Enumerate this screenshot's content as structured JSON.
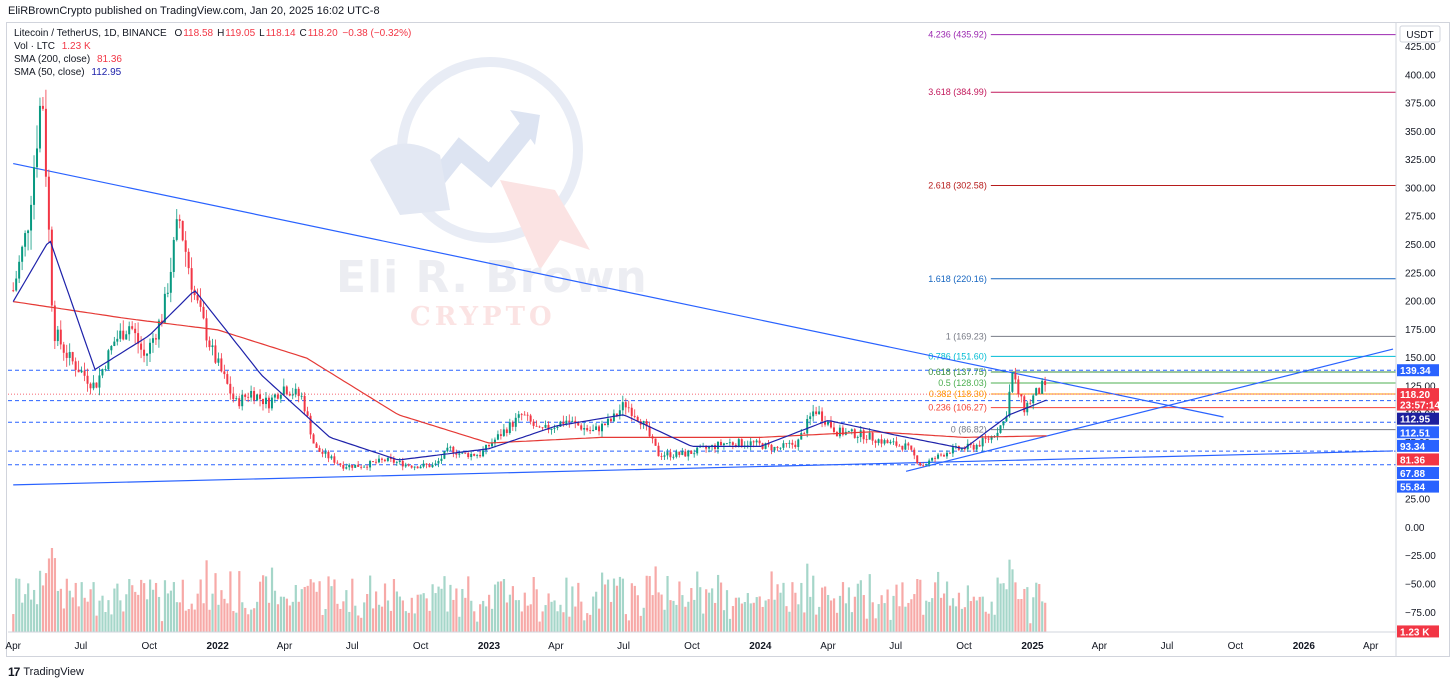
{
  "header": {
    "publisher": "EliRBrownCrypto published on TradingView.com, Jan 20, 2025 16:02 UTC-8"
  },
  "legend": {
    "symbol": "Litecoin / TetherUS, 1D, BINANCE",
    "ohlc": [
      {
        "k": "O",
        "v": "118.58"
      },
      {
        "k": "H",
        "v": "119.05"
      },
      {
        "k": "L",
        "v": "118.14"
      },
      {
        "k": "C",
        "v": "118.20"
      }
    ],
    "change": "−0.38 (−0.32%)",
    "vol_label": "Vol · LTC",
    "vol_value": "1.23 K",
    "sma200_label": "SMA (200, close)",
    "sma200_value": "81.36",
    "sma50_label": "SMA (50, close)",
    "sma50_value": "112.95"
  },
  "watermark": {
    "line1": "Eli R. Brown",
    "line2": "CRYPTO"
  },
  "footer": {
    "brand": "TradingView"
  },
  "chart_data": {
    "type": "candlestick",
    "symbol": "LTCUSDT",
    "interval": "1D",
    "currency": "USDT",
    "x_tick_labels": [
      "Apr",
      "Jul",
      "Oct",
      "2022",
      "Apr",
      "Jul",
      "Oct",
      "2023",
      "Apr",
      "Jul",
      "Oct",
      "2024",
      "Apr",
      "Jul",
      "Oct",
      "2025",
      "Apr",
      "Jul",
      "Oct",
      "2026",
      "Apr"
    ],
    "y_tick_labels": [
      "425.00",
      "400.00",
      "375.00",
      "350.00",
      "325.00",
      "300.00",
      "275.00",
      "250.00",
      "225.00",
      "200.00",
      "175.00",
      "150.00",
      "125.00",
      "100.00",
      "75.00",
      "50.00",
      "25.00",
      "0.00",
      "−25.00",
      "−50.00",
      "−75.00"
    ],
    "ylim": [
      -92,
      440
    ],
    "approx_price_series": {
      "dates": [
        "2021-04-01",
        "2021-04-20",
        "2021-05-10",
        "2021-05-25",
        "2021-06-15",
        "2021-07-20",
        "2021-08-15",
        "2021-09-05",
        "2021-09-25",
        "2021-10-20",
        "2021-11-10",
        "2021-12-01",
        "2021-12-25",
        "2022-01-25",
        "2022-02-15",
        "2022-03-10",
        "2022-03-30",
        "2022-04-25",
        "2022-05-12",
        "2022-06-18",
        "2022-07-15",
        "2022-08-15",
        "2022-09-20",
        "2022-10-20",
        "2022-11-09",
        "2022-11-25",
        "2022-12-20",
        "2023-01-20",
        "2023-02-15",
        "2023-03-10",
        "2023-04-15",
        "2023-05-20",
        "2023-06-15",
        "2023-07-03",
        "2023-07-25",
        "2023-08-17",
        "2023-09-20",
        "2023-10-20",
        "2023-11-15",
        "2023-12-20",
        "2024-01-23",
        "2024-02-20",
        "2024-03-14",
        "2024-04-13",
        "2024-05-20",
        "2024-06-20",
        "2024-07-15",
        "2024-08-05",
        "2024-09-10",
        "2024-10-15",
        "2024-11-06",
        "2024-11-25",
        "2024-12-05",
        "2024-12-20",
        "2025-01-05",
        "2025-01-15",
        "2025-01-20"
      ],
      "close": [
        210,
        265,
        390,
        175,
        150,
        125,
        165,
        180,
        150,
        190,
        275,
        205,
        155,
        110,
        120,
        110,
        125,
        115,
        70,
        55,
        55,
        60,
        55,
        55,
        70,
        65,
        65,
        85,
        100,
        85,
        95,
        85,
        95,
        110,
        95,
        65,
        65,
        70,
        75,
        75,
        70,
        75,
        105,
        85,
        82,
        75,
        72,
        55,
        68,
        72,
        80,
        95,
        135,
        105,
        118,
        125,
        118.2
      ]
    },
    "sma_200": {
      "dates": [
        "2021-04-01",
        "2021-09-01",
        "2022-01-01",
        "2022-05-01",
        "2022-09-01",
        "2023-01-01",
        "2023-06-01",
        "2024-01-01",
        "2024-06-01",
        "2024-10-01",
        "2025-01-20"
      ],
      "values": [
        200,
        185,
        175,
        150,
        100,
        75,
        80,
        80,
        85,
        80,
        81.36
      ]
    },
    "sma_50": {
      "dates": [
        "2021-04-01",
        "2021-05-20",
        "2021-07-20",
        "2021-10-01",
        "2021-12-01",
        "2022-03-01",
        "2022-06-01",
        "2022-09-01",
        "2023-01-01",
        "2023-04-01",
        "2023-07-01",
        "2023-10-01",
        "2024-01-01",
        "2024-04-01",
        "2024-07-01",
        "2024-10-01",
        "2024-12-01",
        "2025-01-20"
      ],
      "values": [
        200,
        255,
        140,
        170,
        210,
        135,
        80,
        60,
        70,
        90,
        100,
        72,
        72,
        95,
        82,
        70,
        100,
        112.95
      ]
    },
    "fib_levels": [
      {
        "label": "4.236 (435.92)",
        "value": 435.92,
        "color": "#9c27b0"
      },
      {
        "label": "3.618 (384.99)",
        "value": 384.99,
        "color": "#c2185b"
      },
      {
        "label": "2.618 (302.58)",
        "value": 302.58,
        "color": "#b71c1c"
      },
      {
        "label": "1.618 (220.16)",
        "value": 220.16,
        "color": "#1565c0"
      },
      {
        "label": "1 (169.23)",
        "value": 169.23,
        "color": "#787b86"
      },
      {
        "label": "0.786 (151.60)",
        "value": 151.6,
        "color": "#00bcd4"
      },
      {
        "label": "0.618 (137.75)",
        "value": 137.75,
        "color": "#388e3c"
      },
      {
        "label": "0.5 (128.03)",
        "value": 128.03,
        "color": "#4caf50"
      },
      {
        "label": "0.382 (118.30)",
        "value": 118.3,
        "color": "#ff9800"
      },
      {
        "label": "0.236 (106.27)",
        "value": 106.27,
        "color": "#f44336"
      },
      {
        "label": "0 (86.82)",
        "value": 86.82,
        "color": "#787b86"
      }
    ],
    "horizontal_levels": [
      139.34,
      112.51,
      93.34,
      67.88,
      55.84
    ],
    "price_tags": [
      {
        "label": "139.34",
        "value": 139.34,
        "bg": "#2962ff",
        "color": "#ffffff"
      },
      {
        "label": "118.20",
        "value": 118.2,
        "bg": "#f23645",
        "color": "#ffffff"
      },
      {
        "label": "23:57:14",
        "value": 109.0,
        "bg": "#f23645",
        "color": "#ffffff"
      },
      {
        "label": "112.95",
        "value": 96.5,
        "bg": "#1c1f9e",
        "color": "#ffffff"
      },
      {
        "label": "112.51",
        "value": 84.5,
        "bg": "#2962ff",
        "color": "#ffffff"
      },
      {
        "label": "93.34",
        "value": 72.5,
        "bg": "#2962ff",
        "color": "#ffffff"
      },
      {
        "label": "81.36",
        "value": 60.5,
        "bg": "#f23645",
        "color": "#ffffff"
      },
      {
        "label": "67.88",
        "value": 48.5,
        "bg": "#2962ff",
        "color": "#ffffff"
      },
      {
        "label": "55.84",
        "value": 36.5,
        "bg": "#2962ff",
        "color": "#ffffff"
      },
      {
        "label": "1.23 K",
        "value": -91.5,
        "bg": "#f23645",
        "color": "#ffffff"
      }
    ],
    "trendlines": [
      {
        "name": "descending-resistance",
        "from": [
          "2021-04-01",
          322
        ],
        "to": [
          "2025-09-15",
          98
        ]
      },
      {
        "name": "long-support",
        "from": [
          "2021-04-01",
          38
        ],
        "to": [
          "2026-05-01",
          68
        ]
      },
      {
        "name": "rising-support",
        "from": [
          "2024-07-15",
          50
        ],
        "to": [
          "2026-05-01",
          158
        ]
      }
    ],
    "axis_unit_label": "USDT",
    "colors": {
      "up": "#089981",
      "down": "#f23645",
      "sma200": "#e53935",
      "sma50": "#1e22aa",
      "trendline": "#2962ff",
      "vol_up": "#a5d6c9",
      "vol_down": "#f7a9a7"
    }
  }
}
